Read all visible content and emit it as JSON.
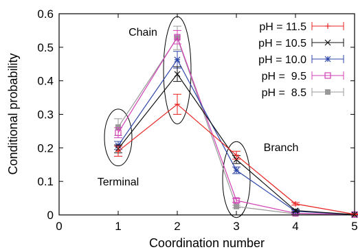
{
  "chart_data": {
    "type": "line",
    "xlabel": "Coordination number",
    "ylabel": "Conditional probability",
    "xlim": [
      0,
      5
    ],
    "ylim": [
      0,
      0.6
    ],
    "x_ticks": [
      "0",
      "1",
      "2",
      "3",
      "4",
      "5"
    ],
    "y_ticks": [
      "0",
      "0.1",
      "0.2",
      "0.3",
      "0.4",
      "0.5",
      "0.6"
    ],
    "x": [
      1,
      2,
      3,
      4,
      5
    ],
    "legend_position": "top-right",
    "series": [
      {
        "name": "pH = 11.5",
        "color": "#e8221f",
        "marker": "plus",
        "values": [
          0.19,
          0.33,
          0.178,
          0.033,
          0.002
        ],
        "errors": [
          0.015,
          0.03,
          0.012,
          0.004,
          0.001
        ]
      },
      {
        "name": "pH = 10.5",
        "color": "#111111",
        "marker": "cross",
        "values": [
          0.197,
          0.42,
          0.165,
          0.013,
          0.001
        ],
        "errors": [
          0.012,
          0.022,
          0.012,
          0.004,
          0.001
        ]
      },
      {
        "name": "pH = 10.0",
        "color": "#2b45a8",
        "marker": "star",
        "values": [
          0.207,
          0.463,
          0.133,
          0.011,
          0.001
        ],
        "errors": [
          0.012,
          0.025,
          0.01,
          0.003,
          0.001
        ]
      },
      {
        "name": "pH =  9.5",
        "color": "#d13fb5",
        "marker": "open-square",
        "values": [
          0.245,
          0.53,
          0.043,
          0.005,
          0.001
        ],
        "errors": [
          0.015,
          0.02,
          0.006,
          0.002,
          0.001
        ]
      },
      {
        "name": "pH =  8.5",
        "color": "#999999",
        "marker": "filled-square",
        "values": [
          0.262,
          0.528,
          0.025,
          0.003,
          0.0
        ],
        "errors": [
          0.025,
          0.035,
          0.004,
          0.002,
          0.001
        ]
      }
    ],
    "annotations": [
      {
        "text": "Terminal",
        "x": 1
      },
      {
        "text": "Chain",
        "x": 2
      },
      {
        "text": "Branch",
        "x": 3
      }
    ]
  }
}
